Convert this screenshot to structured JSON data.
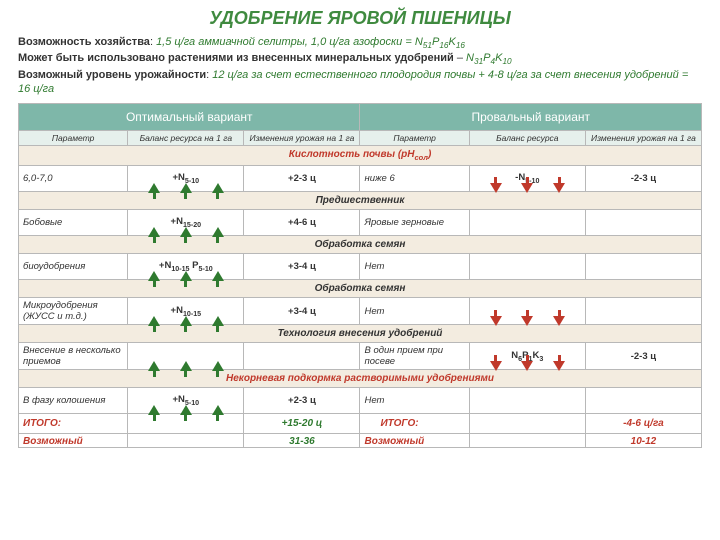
{
  "colors": {
    "title": "#3f8a3f",
    "accent": "#2f7a2f",
    "red": "#c0392b",
    "hdrBg": "#7eb7a9",
    "subhdrBg": "#e6f0ec",
    "sectionBg": "#f3ece0",
    "arrowUp": "#2f7a2f",
    "arrowDown": "#c0392b"
  },
  "title": "УДОБРЕНИЕ ЯРОВОЙ ПШЕНИЦЫ",
  "intro": {
    "line1_label": "Возможность хозяйства",
    "line1_value_html": "1,5 ц/га аммиачной селитры, 1,0 ц/га азофоски = N<sub>51</sub>P<sub>16</sub>K<sub>16</sub>",
    "line2_label": "Может быть использовано растениями из внесенных минеральных удобрений",
    "line2_value_html": "N<sub>31</sub>P<sub>4</sub>K<sub>10</sub>",
    "line3_label": "Возможный уровень урожайности",
    "line3_value": "12 ц/га  за счет естественного плодородия почвы + 4-8 ц/га за счет внесения удобрений = 16 ц/га"
  },
  "headers": {
    "optimal": "Оптимальный вариант",
    "fail": "Провальный  вариант",
    "param": "Параметр",
    "balance_a": "Баланс ресурса на 1 га",
    "change_a": "Изменения урожая на 1 га",
    "balance_b": "Баланс ресурса",
    "change_b": "Изменения урожая на 1 га"
  },
  "sections": [
    {
      "title_html": "Кислотность почвы (pH<sub>сол</sub>)",
      "title_color": "#c0392b",
      "rows": [
        {
          "a_param": "6,0-7,0",
          "a_bal_html": "+N<sub>5-10</sub>",
          "a_chg": "+2-3 ц",
          "a_arrows": "up",
          "b_param": "ниже 6",
          "b_bal_html": "-N<sub>5-10</sub>",
          "b_chg": "-2-3 ц",
          "b_arrows": "down"
        }
      ]
    },
    {
      "title_html": "Предшественник",
      "rows": [
        {
          "a_param": "Бобовые",
          "a_bal_html": "+N<sub>15-20</sub>",
          "a_chg": "+4-6 ц",
          "a_arrows": "up",
          "b_param": "Яровые зерновые",
          "b_bal_html": "",
          "b_chg": "",
          "b_arrows": ""
        }
      ]
    },
    {
      "title_html": "Обработка семян",
      "rows": [
        {
          "a_param": "биоудобрения",
          "a_bal_html": "+N<sub>10-15</sub> P<sub>5-10</sub>",
          "a_chg": "+3-4 ц",
          "a_arrows": "up",
          "b_param": "Нет",
          "b_bal_html": "",
          "b_chg": "",
          "b_arrows": ""
        }
      ]
    },
    {
      "title_html": "Обработка семян",
      "rows": [
        {
          "a_param": "Микроудобрения (ЖУСС и т.д.)",
          "a_bal_html": "+N<sub>10-15</sub>",
          "a_chg": "+3-4 ц",
          "a_arrows": "up",
          "b_param": "Нет",
          "b_bal_html": "",
          "b_chg": "",
          "b_arrows": "down"
        }
      ]
    },
    {
      "title_html": "Технология внесения удобрений",
      "rows": [
        {
          "a_param": "Внесение в несколько приемов",
          "a_bal_html": "",
          "a_chg": "",
          "a_arrows": "up",
          "b_param": "В один прием при посеве",
          "b_bal_html": "N<sub>6</sub>P<sub>1</sub>K<sub>3</sub>",
          "b_chg": "-2-3 ц",
          "b_arrows": "down"
        }
      ]
    },
    {
      "title_html": "Некорневая подкормка растворимыми удобрениями",
      "title_color": "#c0392b",
      "rows": [
        {
          "a_param": "В фазу колошения",
          "a_bal_html": "+N<sub>5-10</sub>",
          "a_chg": "+2-3 ц",
          "a_arrows": "up",
          "b_param": "Нет",
          "b_bal_html": "",
          "b_chg": "",
          "b_arrows": ""
        }
      ]
    }
  ],
  "total": {
    "label": "ИТОГО:",
    "a_val": "+15-20 ц",
    "b_val": "-4-6 ц/га",
    "a_color": "#2f7a2f",
    "b_color": "#c0392b",
    "label_color": "#c0392b"
  },
  "possible": {
    "label": "Возможный",
    "a_val": "31-36",
    "b_val": "10-12"
  }
}
